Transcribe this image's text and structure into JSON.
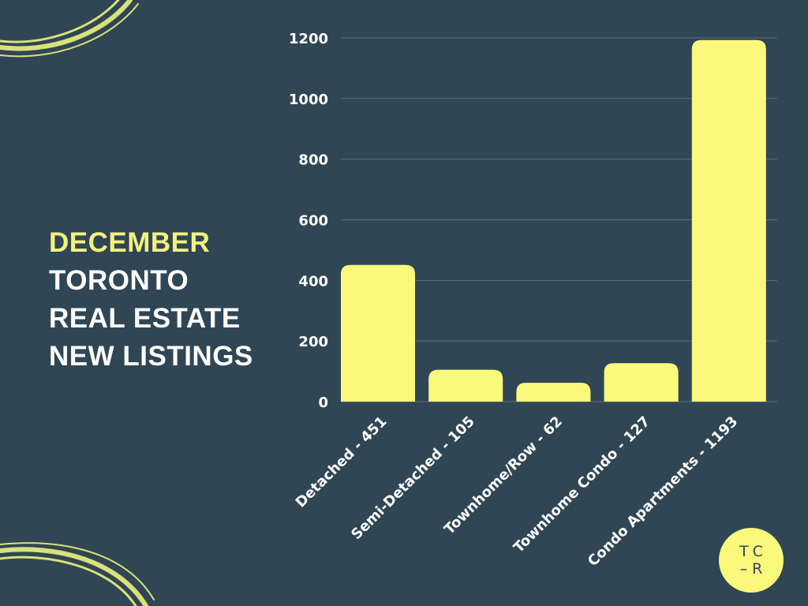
{
  "title": {
    "line1": "DECEMBER",
    "line2": "TORONTO",
    "line3": "REAL ESTATE",
    "line4": "NEW LISTINGS"
  },
  "logo": {
    "line1": "TC",
    "line2": "–R"
  },
  "colors": {
    "background": "#304654",
    "accent": "#f2f27f",
    "bar": "#fbf97c",
    "grid": "#5a6d78"
  },
  "chart_data": {
    "type": "bar",
    "categories": [
      "Detached - 451",
      "Semi-Detached - 105",
      "Townhome/Row - 62",
      "Townhome Condo - 127",
      "Condo Apartments - 1193"
    ],
    "values": [
      451,
      105,
      62,
      127,
      1193
    ],
    "yticks": [
      "0",
      "200",
      "400",
      "600",
      "800",
      "1000",
      "1200"
    ],
    "ylim": [
      0,
      1200
    ],
    "grid": true,
    "legend": false
  }
}
